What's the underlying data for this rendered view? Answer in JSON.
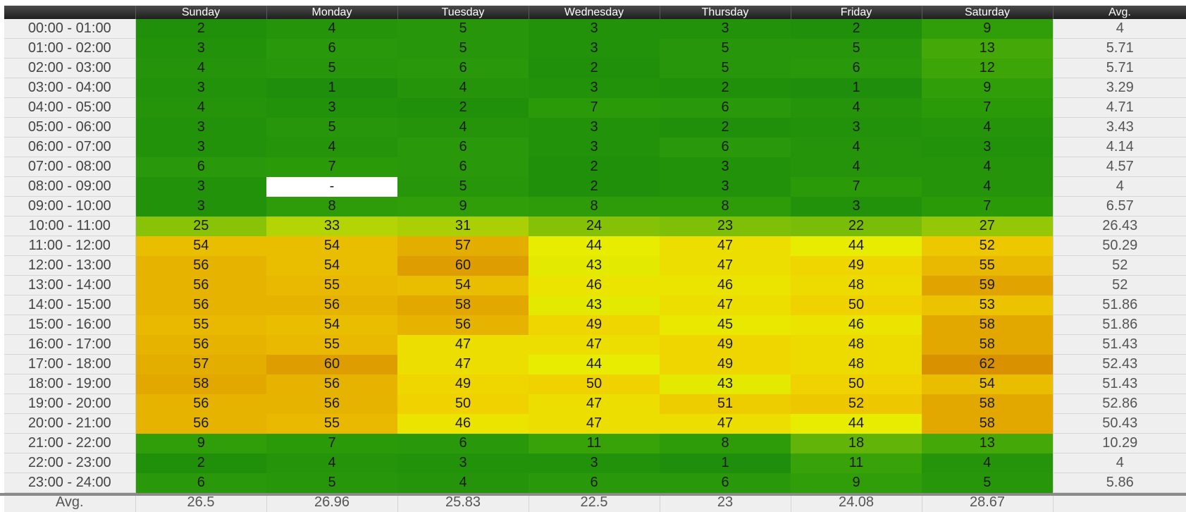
{
  "header": {
    "days": [
      "Sunday",
      "Monday",
      "Tuesday",
      "Wednesday",
      "Thursday",
      "Friday",
      "Saturday"
    ],
    "avg_label": "Avg."
  },
  "rows": [
    {
      "label": "00:00 - 01:00",
      "values": [
        "2",
        "4",
        "5",
        "3",
        "3",
        "2",
        "9"
      ],
      "avg": "4"
    },
    {
      "label": "01:00 - 02:00",
      "values": [
        "3",
        "6",
        "5",
        "3",
        "5",
        "5",
        "13"
      ],
      "avg": "5.71"
    },
    {
      "label": "02:00 - 03:00",
      "values": [
        "4",
        "5",
        "6",
        "2",
        "5",
        "6",
        "12"
      ],
      "avg": "5.71"
    },
    {
      "label": "03:00 - 04:00",
      "values": [
        "3",
        "1",
        "4",
        "3",
        "2",
        "1",
        "9"
      ],
      "avg": "3.29"
    },
    {
      "label": "04:00 - 05:00",
      "values": [
        "4",
        "3",
        "2",
        "7",
        "6",
        "4",
        "7"
      ],
      "avg": "4.71"
    },
    {
      "label": "05:00 - 06:00",
      "values": [
        "3",
        "5",
        "4",
        "3",
        "2",
        "3",
        "4"
      ],
      "avg": "3.43"
    },
    {
      "label": "06:00 - 07:00",
      "values": [
        "3",
        "4",
        "6",
        "3",
        "6",
        "4",
        "3"
      ],
      "avg": "4.14"
    },
    {
      "label": "07:00 - 08:00",
      "values": [
        "6",
        "7",
        "6",
        "2",
        "3",
        "4",
        "4"
      ],
      "avg": "4.57"
    },
    {
      "label": "08:00 - 09:00",
      "values": [
        "3",
        "-",
        "5",
        "2",
        "3",
        "7",
        "4"
      ],
      "avg": "4"
    },
    {
      "label": "09:00 - 10:00",
      "values": [
        "3",
        "8",
        "9",
        "8",
        "8",
        "3",
        "7"
      ],
      "avg": "6.57"
    },
    {
      "label": "10:00 - 11:00",
      "values": [
        "25",
        "33",
        "31",
        "24",
        "23",
        "22",
        "27"
      ],
      "avg": "26.43"
    },
    {
      "label": "11:00 - 12:00",
      "values": [
        "54",
        "54",
        "57",
        "44",
        "47",
        "44",
        "52"
      ],
      "avg": "50.29"
    },
    {
      "label": "12:00 - 13:00",
      "values": [
        "56",
        "54",
        "60",
        "43",
        "47",
        "49",
        "55"
      ],
      "avg": "52"
    },
    {
      "label": "13:00 - 14:00",
      "values": [
        "56",
        "55",
        "54",
        "46",
        "46",
        "48",
        "59"
      ],
      "avg": "52"
    },
    {
      "label": "14:00 - 15:00",
      "values": [
        "56",
        "56",
        "58",
        "43",
        "47",
        "50",
        "53"
      ],
      "avg": "51.86"
    },
    {
      "label": "15:00 - 16:00",
      "values": [
        "55",
        "54",
        "56",
        "49",
        "45",
        "46",
        "58"
      ],
      "avg": "51.86"
    },
    {
      "label": "16:00 - 17:00",
      "values": [
        "56",
        "55",
        "47",
        "47",
        "49",
        "48",
        "58"
      ],
      "avg": "51.43"
    },
    {
      "label": "17:00 - 18:00",
      "values": [
        "57",
        "60",
        "47",
        "44",
        "49",
        "48",
        "62"
      ],
      "avg": "52.43"
    },
    {
      "label": "18:00 - 19:00",
      "values": [
        "58",
        "56",
        "49",
        "50",
        "43",
        "50",
        "54"
      ],
      "avg": "51.43"
    },
    {
      "label": "19:00 - 20:00",
      "values": [
        "56",
        "56",
        "50",
        "47",
        "51",
        "52",
        "58"
      ],
      "avg": "52.86"
    },
    {
      "label": "20:00 - 21:00",
      "values": [
        "56",
        "55",
        "46",
        "47",
        "47",
        "44",
        "58"
      ],
      "avg": "50.43"
    },
    {
      "label": "21:00 - 22:00",
      "values": [
        "9",
        "7",
        "6",
        "11",
        "8",
        "18",
        "13"
      ],
      "avg": "10.29"
    },
    {
      "label": "22:00 - 23:00",
      "values": [
        "2",
        "4",
        "3",
        "3",
        "1",
        "11",
        "4"
      ],
      "avg": "4"
    },
    {
      "label": "23:00 - 24:00",
      "values": [
        "6",
        "5",
        "4",
        "6",
        "6",
        "9",
        "5"
      ],
      "avg": "5.86"
    }
  ],
  "footer": {
    "label": "Avg.",
    "values": [
      "26.5",
      "26.96",
      "25.83",
      "22.5",
      "23",
      "24.08",
      "28.67"
    ]
  },
  "colors": {
    "header_bg": "#1e1e1e",
    "label_bg": "#efefef",
    "empty_cell": "#ffffff"
  }
}
